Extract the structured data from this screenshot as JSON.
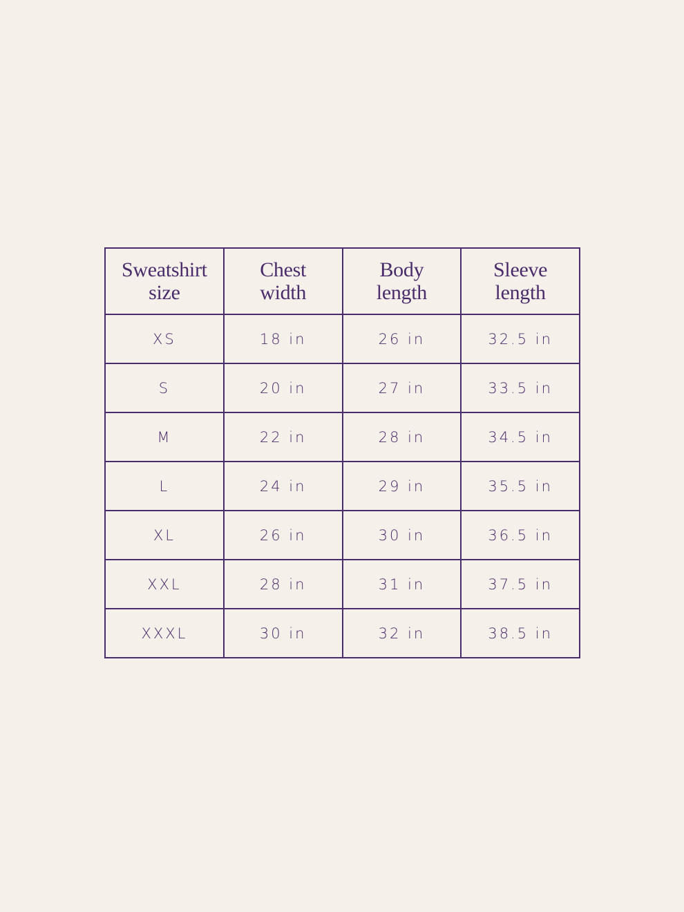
{
  "table": {
    "headers": [
      [
        "Sweatshirt",
        "size"
      ],
      [
        "Chest",
        "width"
      ],
      [
        "Body",
        "length"
      ],
      [
        "Sleeve",
        "length"
      ]
    ],
    "rows": [
      [
        "XS",
        "18 in",
        "26 in",
        "32.5 in"
      ],
      [
        "S",
        "20 in",
        "27 in",
        "33.5 in"
      ],
      [
        "M",
        "22 in",
        "28 in",
        "34.5 in"
      ],
      [
        "L",
        "24 in",
        "29 in",
        "35.5 in"
      ],
      [
        "XL",
        "26 in",
        "30 in",
        "36.5 in"
      ],
      [
        "XXL",
        "28 in",
        "31 in",
        "37.5 in"
      ],
      [
        "XXXL",
        "30 in",
        "32 in",
        "38.5 in"
      ]
    ]
  }
}
